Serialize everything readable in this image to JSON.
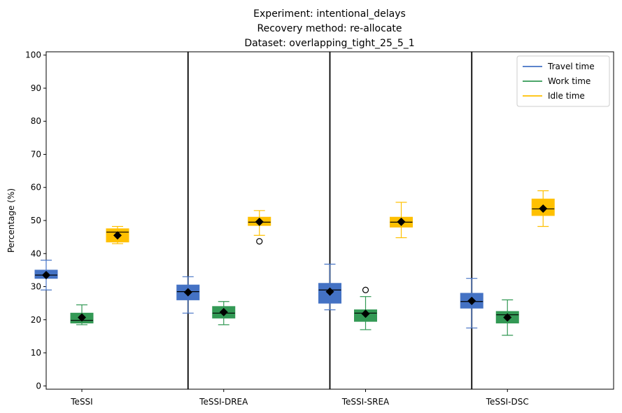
{
  "chart_data": {
    "type": "box",
    "title_lines": [
      "Experiment: intentional_delays",
      "Recovery method: re-allocate",
      "Dataset: overlapping_tight_25_5_1"
    ],
    "xlabel": "",
    "ylabel": "Percentage (%)",
    "ylim": [
      -1,
      101
    ],
    "yticks": [
      0,
      10,
      20,
      30,
      40,
      50,
      60,
      70,
      80,
      90,
      100
    ],
    "grid": false,
    "legend_position": "top-right",
    "categories": [
      "TeSSI",
      "TeSSI-DREA",
      "TeSSI-SREA",
      "TeSSI-DSC"
    ],
    "series": [
      {
        "name": "Travel time",
        "color": "#4472c4",
        "boxes": [
          {
            "whisker_low": 29.0,
            "q1": 32.5,
            "median": 33.5,
            "q3": 35.0,
            "whisker_high": 38.0,
            "mean": 33.5,
            "outliers": []
          },
          {
            "whisker_low": 22.0,
            "q1": 26.0,
            "median": 28.5,
            "q3": 30.5,
            "whisker_high": 33.0,
            "mean": 28.3,
            "outliers": []
          },
          {
            "whisker_low": 23.0,
            "q1": 25.0,
            "median": 29.0,
            "q3": 31.0,
            "whisker_high": 36.8,
            "mean": 28.5,
            "outliers": []
          },
          {
            "whisker_low": 17.5,
            "q1": 23.5,
            "median": 25.5,
            "q3": 28.0,
            "whisker_high": 32.5,
            "mean": 25.7,
            "outliers": []
          }
        ]
      },
      {
        "name": "Work time",
        "color": "#339955",
        "boxes": [
          {
            "whisker_low": 18.5,
            "q1": 19.0,
            "median": 19.8,
            "q3": 22.0,
            "whisker_high": 24.5,
            "mean": 20.7,
            "outliers": []
          },
          {
            "whisker_low": 18.5,
            "q1": 20.5,
            "median": 22.0,
            "q3": 24.0,
            "whisker_high": 25.5,
            "mean": 22.3,
            "outliers": []
          },
          {
            "whisker_low": 17.0,
            "q1": 19.5,
            "median": 22.0,
            "q3": 23.0,
            "whisker_high": 27.0,
            "mean": 21.8,
            "outliers": [
              29.0
            ]
          },
          {
            "whisker_low": 15.3,
            "q1": 19.0,
            "median": 21.5,
            "q3": 22.5,
            "whisker_high": 26.0,
            "mean": 20.7,
            "outliers": []
          }
        ]
      },
      {
        "name": "Idle time",
        "color": "#ffc000",
        "boxes": [
          {
            "whisker_low": 43.0,
            "q1": 43.5,
            "median": 46.5,
            "q3": 47.5,
            "whisker_high": 48.2,
            "mean": 45.5,
            "outliers": []
          },
          {
            "whisker_low": 45.5,
            "q1": 48.5,
            "median": 49.5,
            "q3": 51.0,
            "whisker_high": 53.0,
            "mean": 49.6,
            "outliers": [
              43.7
            ]
          },
          {
            "whisker_low": 44.8,
            "q1": 48.0,
            "median": 49.5,
            "q3": 51.0,
            "whisker_high": 55.5,
            "mean": 49.6,
            "outliers": []
          },
          {
            "whisker_low": 48.2,
            "q1": 51.5,
            "median": 53.5,
            "q3": 56.5,
            "whisker_high": 59.0,
            "mean": 53.6,
            "outliers": []
          }
        ]
      }
    ]
  }
}
